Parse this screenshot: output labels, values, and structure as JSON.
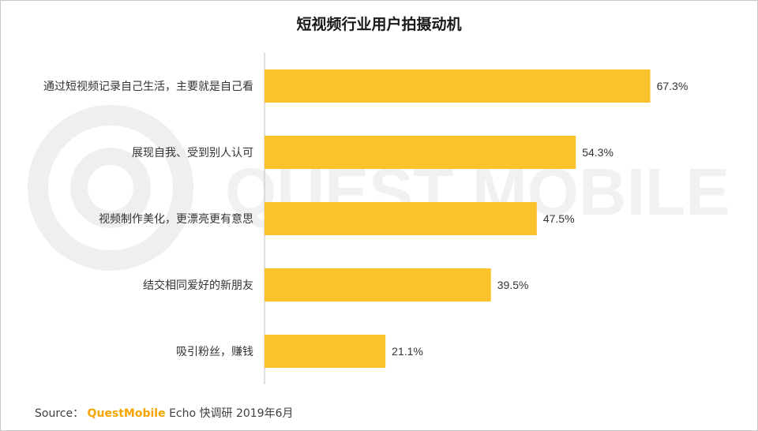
{
  "title": "短视频行业用户拍摄动机",
  "watermark_text": "QUEST MOBILE",
  "source": {
    "prefix": "Source：",
    "brand": "QuestMobile",
    "rest": "Echo 快调研 2019年6月"
  },
  "colors": {
    "bar": "#FBC32B",
    "axis": "#bfbfbf",
    "label": "#333333",
    "brand": "#F5A400"
  },
  "chart_data": {
    "type": "bar",
    "orientation": "horizontal",
    "title": "短视频行业用户拍摄动机",
    "categories": [
      "通过短视频记录自己生活，主要就是自己看",
      "展现自我、受到别人认可",
      "视频制作美化，更漂亮更有意思",
      "结交相同爱好的新朋友",
      "吸引粉丝，赚钱"
    ],
    "values": [
      67.3,
      54.3,
      47.5,
      39.5,
      21.1
    ],
    "value_labels": [
      "67.3%",
      "54.3%",
      "47.5%",
      "39.5%",
      "21.1%"
    ],
    "xlim": [
      0,
      100
    ],
    "unit": "%",
    "grid": false,
    "legend": "none"
  }
}
